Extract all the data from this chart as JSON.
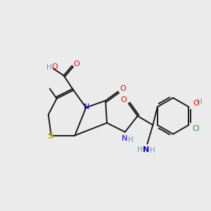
{
  "bg_color": "#ebebeb",
  "bond_color": "#1a1a1a",
  "atom_colors": {
    "O": "#ff0000",
    "N": "#0000cc",
    "S": "#b8b800",
    "Cl": "#228b22",
    "C": "#1a1a1a",
    "H": "#5f9ea0"
  }
}
